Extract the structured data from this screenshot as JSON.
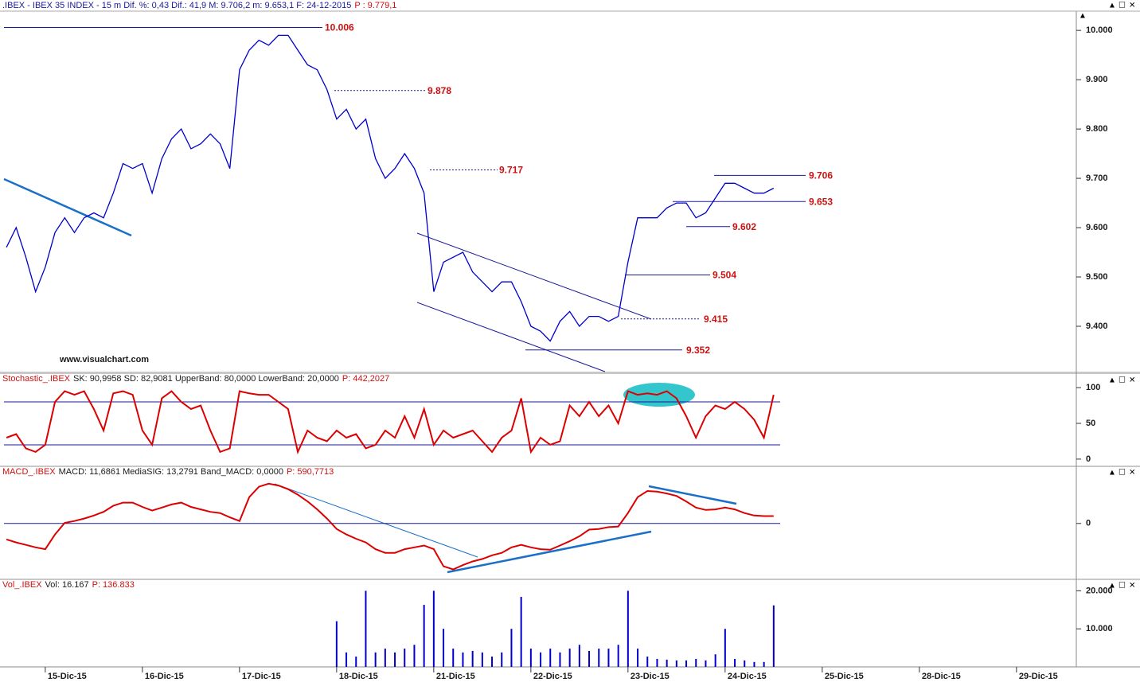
{
  "chart_data": [
    {
      "type": "line",
      "title": ".IBEX - IBEX 35 INDEX - 15 m Dif. %: 0,43 Dif.: 41,9 M: 9.706,2 m: 9.653,1 F: 24-12-2015",
      "subtitle": "P : 9.779,1",
      "annotation": "www.visualchart.com",
      "color": "#0000cc",
      "xlim": [
        -0.66,
        110.16
      ],
      "xticks": [
        {
          "value": 4,
          "label": "15-Dic-15"
        },
        {
          "value": 14,
          "label": "16-Dic-15"
        },
        {
          "value": 24,
          "label": "17-Dic-15"
        },
        {
          "value": 34,
          "label": "18-Dic-15"
        },
        {
          "value": 44,
          "label": "21-Dic-15"
        },
        {
          "value": 54,
          "label": "22-Dic-15"
        },
        {
          "value": 64,
          "label": "23-Dic-15"
        },
        {
          "value": 74,
          "label": "24-Dic-15"
        },
        {
          "value": 84,
          "label": "25-Dic-15"
        },
        {
          "value": 94,
          "label": "28-Dic-15"
        },
        {
          "value": 104,
          "label": "29-Dic-15"
        }
      ],
      "ylim": [
        9.308,
        10.039
      ],
      "yticks": [
        {
          "value": 10,
          "label": "10.000"
        },
        {
          "value": 9.9,
          "label": "9.900"
        },
        {
          "value": 9.8,
          "label": "9.800"
        },
        {
          "value": 9.7,
          "label": "9.700"
        },
        {
          "value": 9.6,
          "label": "9.600"
        },
        {
          "value": 9.5,
          "label": "9.500"
        },
        {
          "value": 9.4,
          "label": "9.400"
        }
      ],
      "levels": [
        {
          "value": 10.006,
          "label": "10.006"
        },
        {
          "value": 9.878,
          "label": "9.878"
        },
        {
          "value": 9.717,
          "label": "9.717"
        },
        {
          "value": 9.706,
          "label": "9.706"
        },
        {
          "value": 9.653,
          "label": "9.653"
        },
        {
          "value": 9.602,
          "label": "9.602"
        },
        {
          "value": 9.504,
          "label": "9.504"
        },
        {
          "value": 9.415,
          "label": "9.415"
        },
        {
          "value": 9.352,
          "label": "9.352"
        }
      ],
      "values": [
        9.56,
        9.6,
        9.54,
        9.47,
        9.52,
        9.59,
        9.62,
        9.59,
        9.62,
        9.63,
        9.62,
        9.67,
        9.73,
        9.72,
        9.73,
        9.67,
        9.74,
        9.78,
        9.8,
        9.76,
        9.77,
        9.79,
        9.77,
        9.72,
        9.92,
        9.96,
        9.98,
        9.97,
        9.99,
        9.99,
        9.96,
        9.93,
        9.92,
        9.88,
        9.82,
        9.84,
        9.8,
        9.82,
        9.74,
        9.7,
        9.72,
        9.75,
        9.72,
        9.67,
        9.47,
        9.53,
        9.54,
        9.55,
        9.51,
        9.49,
        9.47,
        9.49,
        9.49,
        9.45,
        9.4,
        9.39,
        9.37,
        9.41,
        9.43,
        9.4,
        9.42,
        9.42,
        9.41,
        9.42,
        9.53,
        9.62,
        9.62,
        9.62,
        9.64,
        9.65,
        9.65,
        9.62,
        9.63,
        9.66,
        9.69,
        9.69,
        9.68,
        9.67,
        9.67,
        9.68
      ]
    },
    {
      "type": "line",
      "title": "Stochastic_.IBEX",
      "subtitle": "SK: 90,9958 SD: 82,9081 UpperBand: 80,0000 LowerBand: 20,0000",
      "annotation": "P: 442,2027",
      "color": "#dd0000",
      "ylim": [
        -9,
        119
      ],
      "yticks": [
        100,
        50,
        0
      ],
      "bands": [
        80,
        20
      ],
      "values": [
        30,
        35,
        15,
        10,
        20,
        80,
        95,
        90,
        95,
        70,
        40,
        92,
        95,
        90,
        40,
        20,
        85,
        95,
        80,
        70,
        75,
        40,
        10,
        15,
        95,
        92,
        90,
        90,
        80,
        70,
        10,
        40,
        30,
        25,
        40,
        30,
        35,
        15,
        20,
        40,
        30,
        60,
        30,
        70,
        20,
        40,
        30,
        35,
        40,
        25,
        10,
        30,
        40,
        85,
        10,
        30,
        20,
        25,
        75,
        60,
        80,
        60,
        75,
        50,
        95,
        90,
        92,
        90,
        95,
        85,
        60,
        30,
        60,
        75,
        70,
        80,
        70,
        55,
        30,
        90
      ]
    },
    {
      "type": "line",
      "title": "MACD_.IBEX",
      "subtitle": "MACD: 11,6861 MediaSIG: 13,2791 Band_MACD: 0,0000",
      "annotation": "P: 590,7713",
      "color": "#dd0000",
      "ylim": [
        -90,
        92
      ],
      "yticks": [
        0
      ],
      "bands": [
        0
      ],
      "values": [
        -26,
        -31,
        -35,
        -39,
        -42,
        -18,
        1,
        4,
        8,
        13,
        19,
        29,
        34,
        34,
        27,
        21,
        26,
        31,
        34,
        27,
        23,
        19,
        17,
        10,
        4,
        43,
        60,
        65,
        62,
        56,
        47,
        36,
        23,
        8,
        -9,
        -18,
        -25,
        -31,
        -42,
        -48,
        -48,
        -42,
        -39,
        -36,
        -42,
        -70,
        -75,
        -68,
        -62,
        -58,
        -52,
        -48,
        -39,
        -35,
        -39,
        -42,
        -43,
        -36,
        -29,
        -21,
        -10,
        -9,
        -6,
        -5,
        17,
        43,
        53,
        52,
        49,
        45,
        36,
        26,
        22,
        23,
        26,
        23,
        17,
        13,
        12,
        12
      ]
    },
    {
      "type": "bar",
      "title": "Vol_.IBEX",
      "subtitle": "Vol: 16.167",
      "annotation": "P: 136.833",
      "color": "#0000cc",
      "ylim": [
        0,
        22800
      ],
      "yticks": [
        {
          "value": 20000,
          "label": "20.000"
        },
        {
          "value": 10000,
          "label": "10.000"
        }
      ],
      "values": [
        null,
        null,
        null,
        null,
        null,
        null,
        null,
        null,
        null,
        null,
        null,
        null,
        null,
        null,
        null,
        null,
        null,
        null,
        null,
        null,
        null,
        null,
        null,
        null,
        null,
        null,
        null,
        null,
        null,
        null,
        null,
        null,
        null,
        null,
        12000,
        3800,
        2700,
        20000,
        3800,
        4800,
        3800,
        4800,
        5800,
        16300,
        20000,
        10000,
        4800,
        3800,
        4200,
        3800,
        2700,
        3800,
        10000,
        18400,
        4800,
        3800,
        4800,
        3800,
        4800,
        5800,
        4200,
        4800,
        4800,
        5800,
        20000,
        4800,
        2700,
        2100,
        1900,
        1700,
        1700,
        2100,
        1700,
        3300,
        10000,
        2100,
        1700,
        1300,
        1300,
        16167
      ]
    }
  ]
}
